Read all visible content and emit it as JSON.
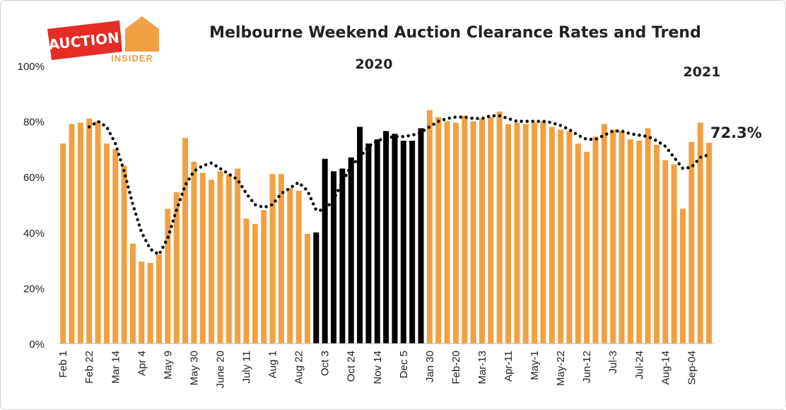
{
  "logo": {
    "line1": "AUCTION",
    "line2": "INSIDER"
  },
  "chart_data": {
    "type": "bar",
    "title": "Melbourne Weekend Auction Clearance Rates and Trend",
    "annotations": [
      "2020",
      "2021",
      "72.3%"
    ],
    "categories": [
      "Feb 1",
      null,
      null,
      "Feb 22",
      null,
      null,
      "Mar 14",
      null,
      null,
      "Apr 4",
      null,
      null,
      "May 9",
      null,
      null,
      "May 30",
      null,
      null,
      "June 20",
      null,
      null,
      "July 11",
      null,
      null,
      "Aug 1",
      null,
      null,
      "Aug 22",
      null,
      null,
      "Oct 3",
      null,
      null,
      "Oct 24",
      null,
      null,
      "Nov 14",
      null,
      null,
      "Dec 5",
      null,
      null,
      "Jan 30",
      null,
      null,
      "Feb-20",
      null,
      null,
      "Mar-13",
      null,
      null,
      "Apr-11",
      null,
      null,
      "May-1",
      null,
      null,
      "May-22",
      null,
      null,
      "Jun-12",
      null,
      null,
      "Jul-3",
      null,
      null,
      "Jul-24",
      null,
      null,
      "Aug-14",
      null,
      null,
      "Sep-04",
      null,
      null
    ],
    "values": [
      72,
      79,
      79.5,
      81,
      80,
      72,
      70,
      64,
      36,
      29.5,
      29,
      32,
      48.5,
      54.5,
      74,
      65.5,
      61.5,
      59,
      62,
      61,
      63,
      45,
      43,
      48,
      61,
      61,
      56,
      55,
      39.5,
      40,
      66.5,
      62,
      63,
      67,
      78,
      72,
      73.5,
      76.5,
      75.5,
      73,
      73,
      77.5,
      84,
      81.5,
      80,
      79.5,
      82,
      80,
      81,
      81.5,
      83.5,
      79,
      79.5,
      79,
      79.5,
      80,
      78,
      77,
      76.5,
      72,
      69,
      74.5,
      79,
      77,
      76.5,
      73.5,
      73,
      77.5,
      71.5,
      66,
      64.5,
      48.5,
      72.5,
      79.5,
      72.3
    ],
    "colors": [
      "#f0a043",
      "#f0a043",
      "#f0a043",
      "#f0a043",
      "#f0a043",
      "#f0a043",
      "#f0a043",
      "#f0a043",
      "#f0a043",
      "#f0a043",
      "#f0a043",
      "#f0a043",
      "#f0a043",
      "#f0a043",
      "#f0a043",
      "#f0a043",
      "#f0a043",
      "#f0a043",
      "#f0a043",
      "#f0a043",
      "#f0a043",
      "#f0a043",
      "#f0a043",
      "#f0a043",
      "#f0a043",
      "#f0a043",
      "#f0a043",
      "#f0a043",
      "#f0a043",
      "#000000",
      "#000000",
      "#000000",
      "#000000",
      "#000000",
      "#000000",
      "#000000",
      "#000000",
      "#000000",
      "#000000",
      "#000000",
      "#000000",
      "#000000",
      "#f0a043",
      "#f0a043",
      "#f0a043",
      "#f0a043",
      "#f0a043",
      "#f0a043",
      "#f0a043",
      "#f0a043",
      "#f0a043",
      "#f0a043",
      "#f0a043",
      "#f0a043",
      "#f0a043",
      "#f0a043",
      "#f0a043",
      "#f0a043",
      "#f0a043",
      "#f0a043",
      "#f0a043",
      "#f0a043",
      "#f0a043",
      "#f0a043",
      "#f0a043",
      "#f0a043",
      "#f0a043",
      "#f0a043",
      "#f0a043",
      "#f0a043",
      "#f0a043",
      "#f0a043",
      "#f0a043",
      "#f0a043",
      "#f0a043"
    ],
    "trend": {
      "color": "#000000",
      "style": "dotted",
      "values": [
        null,
        null,
        null,
        78,
        80,
        78,
        72,
        62,
        50,
        40,
        34,
        32,
        38,
        48,
        57,
        62,
        64,
        65,
        63,
        61,
        59,
        54,
        50,
        49,
        50,
        54,
        56,
        58,
        55,
        48,
        48,
        52,
        58,
        64,
        67,
        71,
        73,
        74,
        74.5,
        74.5,
        75,
        76,
        78,
        80,
        81,
        81.5,
        81.5,
        81,
        81,
        82,
        82,
        81,
        80,
        80,
        80,
        80,
        79.5,
        78.5,
        77,
        75,
        73.5,
        73.5,
        75,
        76.5,
        76.5,
        75.5,
        75,
        74.5,
        73,
        71,
        67,
        63,
        63.5,
        67,
        68
      ]
    },
    "ylim": [
      0,
      100
    ],
    "yticks": [
      {
        "value": 0,
        "label": "0%"
      },
      {
        "value": 20,
        "label": "20%"
      },
      {
        "value": 40,
        "label": "40%"
      },
      {
        "value": 60,
        "label": "60%"
      },
      {
        "value": 80,
        "label": "80%"
      },
      {
        "value": 100,
        "label": "100%"
      }
    ],
    "grid": false
  }
}
